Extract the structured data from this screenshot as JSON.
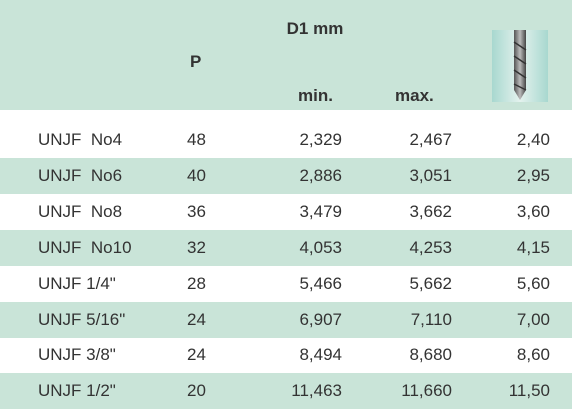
{
  "header": {
    "group": "D1 mm",
    "p": "P",
    "min": "min.",
    "max": "max."
  },
  "table": {
    "rows": [
      [
        "UNJF  No4",
        "48",
        "2,329",
        "2,467",
        "2,40"
      ],
      [
        "UNJF  No6",
        "40",
        "2,886",
        "3,051",
        "2,95"
      ],
      [
        "UNJF  No8",
        "36",
        "3,479",
        "3,662",
        "3,60"
      ],
      [
        "UNJF  No10",
        "32",
        "4,053",
        "4,253",
        "4,15"
      ],
      [
        "UNJF 1/4\"",
        "28",
        "5,466",
        "5,662",
        "5,60"
      ],
      [
        "UNJF 5/16\"",
        "24",
        "6,907",
        "7,110",
        "7,00"
      ],
      [
        "UNJF 3/8\"",
        "24",
        "8,494",
        "8,680",
        "8,60"
      ],
      [
        "UNJF 1/2\"",
        "20",
        "11,463",
        "11,660",
        "11,50"
      ]
    ]
  }
}
